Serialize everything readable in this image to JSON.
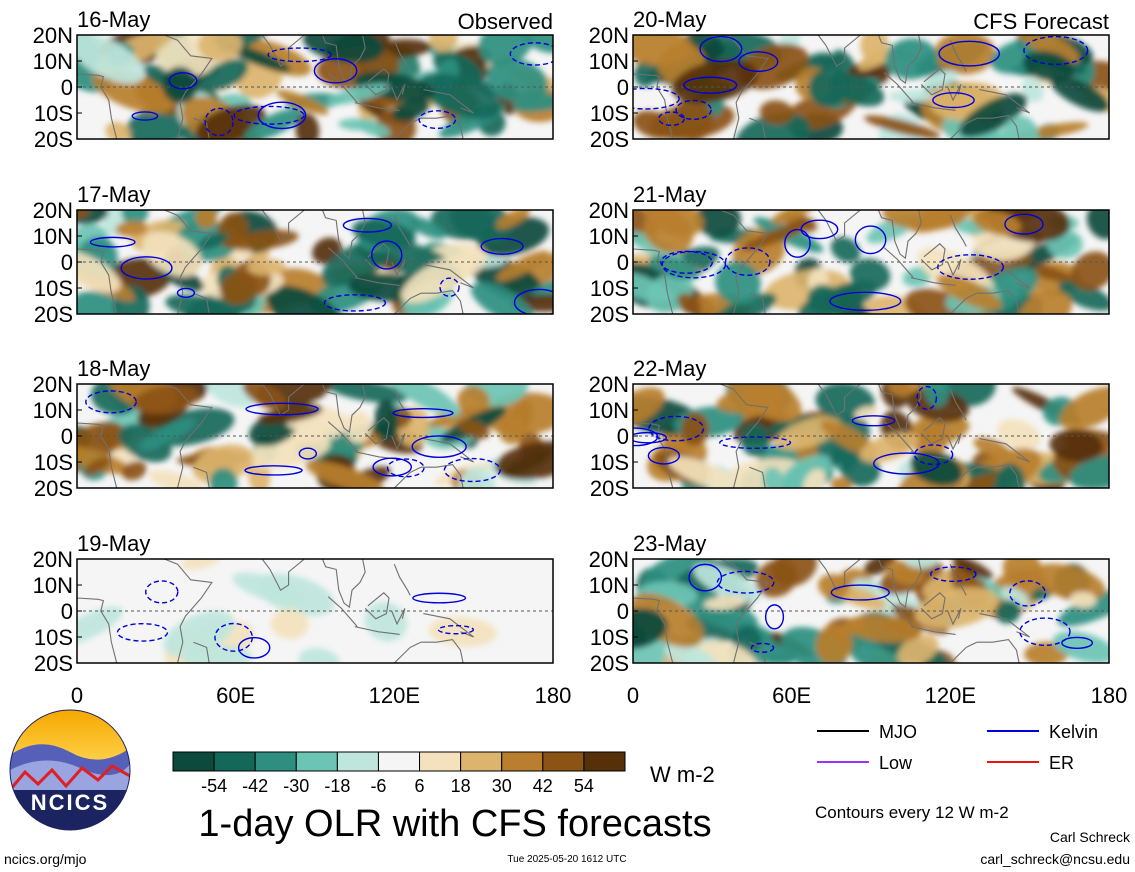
{
  "chart_data": {
    "type": "heatmap",
    "title": "1-day OLR with CFS forecasts",
    "observed_label": "Observed",
    "forecast_label": "CFS Forecast",
    "panels": [
      {
        "date": "16-May",
        "kind": "observed"
      },
      {
        "date": "17-May",
        "kind": "observed"
      },
      {
        "date": "18-May",
        "kind": "observed"
      },
      {
        "date": "19-May",
        "kind": "observed"
      },
      {
        "date": "20-May",
        "kind": "forecast"
      },
      {
        "date": "21-May",
        "kind": "forecast"
      },
      {
        "date": "22-May",
        "kind": "forecast"
      },
      {
        "date": "23-May",
        "kind": "forecast"
      }
    ],
    "lat_ticks": [
      "20N",
      "10N",
      "0",
      "10S",
      "20S"
    ],
    "lon_ticks": [
      "0",
      "60E",
      "120E",
      "180"
    ],
    "ylim": [
      -20,
      20
    ],
    "xlim": [
      0,
      180
    ],
    "colorbar": {
      "labels": [
        "-54",
        "-42",
        "-30",
        "-18",
        "-6",
        "6",
        "18",
        "30",
        "42",
        "54"
      ],
      "colors": [
        "#0b4a3c",
        "#13685a",
        "#2e8f80",
        "#6cc4b4",
        "#bfe6dd",
        "#f5f5f5",
        "#f3e2bd",
        "#dcb46e",
        "#b97f2e",
        "#8b5314",
        "#563008"
      ],
      "unit": "W m-2"
    },
    "legend": [
      {
        "label": "MJO",
        "color": "#000000"
      },
      {
        "label": "Kelvin",
        "color": "#0000dd"
      },
      {
        "label": "Low",
        "color": "#9933ff"
      },
      {
        "label": "ER",
        "color": "#ee1111"
      }
    ],
    "contour_note": "Contours every 12 W m-2",
    "author": "Carl Schreck",
    "email": "carl_schreck@ncsu.edu",
    "site": "ncics.org/mjo",
    "timestamp": "Tue 2025-05-20 1612 UTC",
    "logo_text": "NCICS"
  }
}
